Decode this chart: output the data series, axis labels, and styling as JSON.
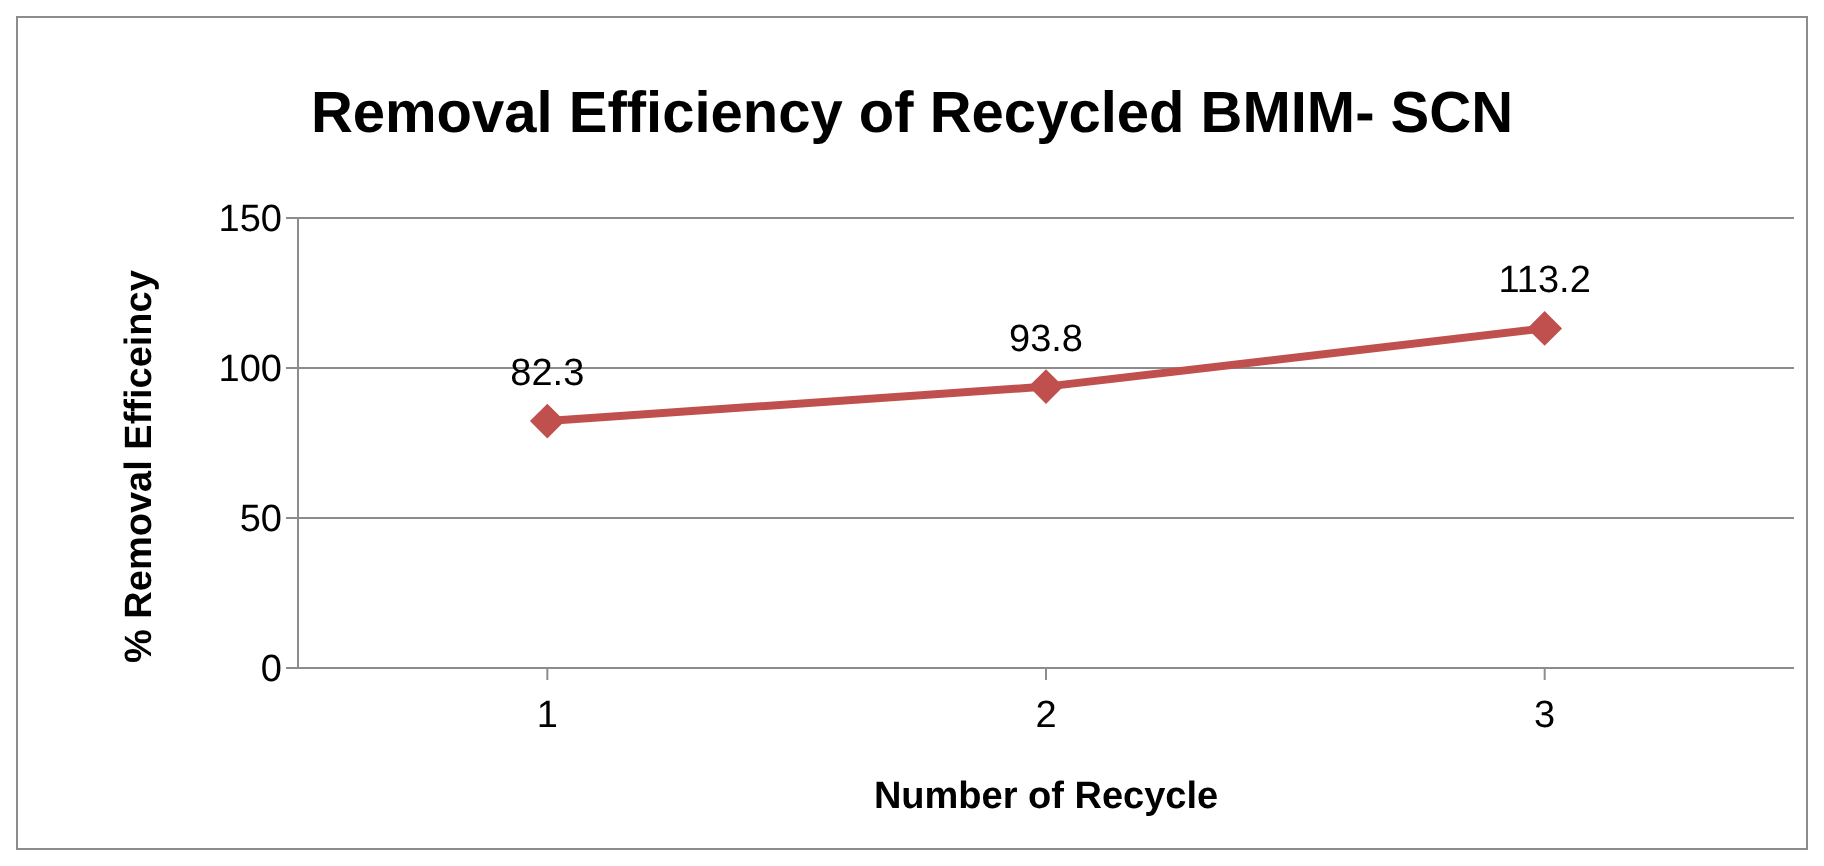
{
  "chart_data": {
    "type": "line",
    "title": "Removal Efficiency of Recycled BMIM- SCN",
    "xlabel": "Number of Recycle",
    "ylabel": "% Removal Efficeincy",
    "categories": [
      "1",
      "2",
      "3"
    ],
    "series": [
      {
        "color": "#c0504d",
        "values": [
          82.3,
          93.8,
          113.2
        ]
      }
    ],
    "ylim": [
      0,
      150
    ],
    "yticks": [
      0,
      50,
      100,
      150
    ],
    "grid": "y",
    "marker": "diamond",
    "line_style": "solid",
    "data_labels": true
  }
}
